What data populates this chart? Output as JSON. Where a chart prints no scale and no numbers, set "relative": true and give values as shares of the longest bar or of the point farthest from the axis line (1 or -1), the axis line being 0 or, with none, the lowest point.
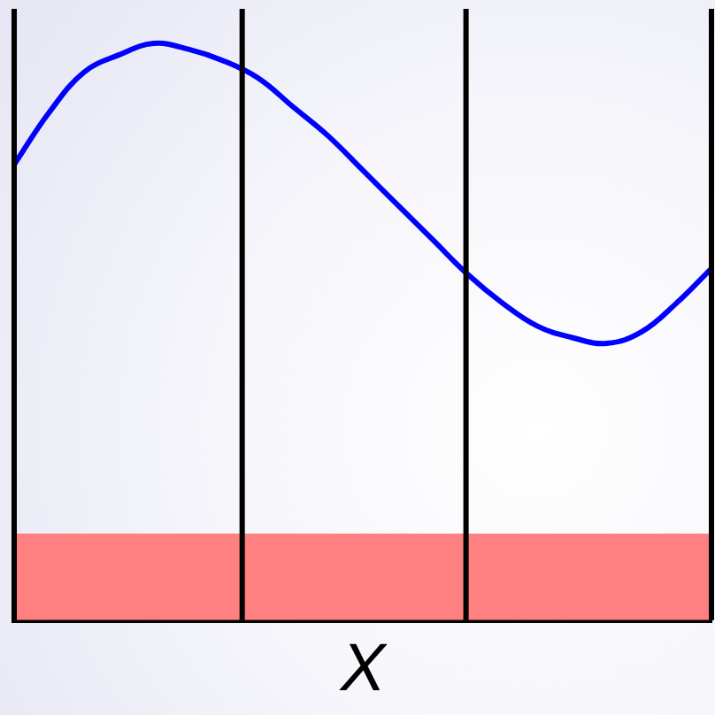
{
  "chart_data": {
    "type": "line",
    "xlabel": "X",
    "categories": [
      null,
      null,
      null,
      null,
      null,
      null,
      null,
      null,
      null,
      null,
      null,
      null,
      null,
      null,
      null,
      null,
      null,
      null,
      null,
      null,
      null
    ],
    "series": [
      {
        "type": "line",
        "color": "#0000ff",
        "values": [
          0.79,
          0.88,
          0.95,
          0.98,
          1,
          0.99,
          0.97,
          0.94,
          0.89,
          0.84,
          0.78,
          0.72,
          0.66,
          0.6,
          0.55,
          0.51,
          0.49,
          0.48,
          0.5,
          0.55,
          0.61
        ]
      },
      {
        "type": "area",
        "color": "#ff8080",
        "values": [
          0.15,
          0.15,
          0.15,
          0.15,
          0.15,
          0.15,
          0.15,
          0.15,
          0.15,
          0.15,
          0.15,
          0.15,
          0.15,
          0.15,
          0.15,
          0.15,
          0.15,
          0.15,
          0.15,
          0.15,
          0.15
        ]
      }
    ],
    "relative": true,
    "tick_labels": false,
    "marker": "none"
  }
}
